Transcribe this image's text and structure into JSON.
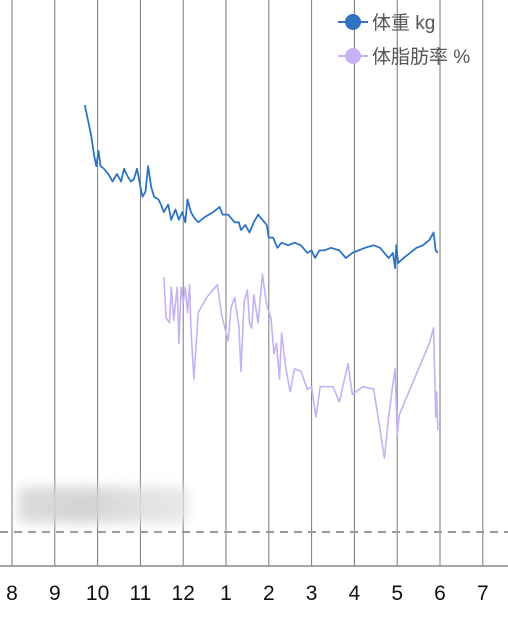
{
  "chart_data": {
    "type": "line",
    "x_tick_labels": [
      "8",
      "9",
      "10",
      "11",
      "12",
      "1",
      "2",
      "3",
      "4",
      "5",
      "6",
      "7"
    ],
    "grid": "vertical",
    "legend_position": "top-right",
    "series": [
      {
        "name": "体重 kg",
        "color": "#2e74c0",
        "points": [
          [
            9.7,
            81.0
          ],
          [
            9.85,
            79.8
          ],
          [
            9.92,
            79.0
          ],
          [
            9.97,
            78.6
          ],
          [
            10.02,
            79.2
          ],
          [
            10.07,
            78.6
          ],
          [
            10.15,
            78.5
          ],
          [
            10.25,
            78.3
          ],
          [
            10.35,
            78.0
          ],
          [
            10.45,
            78.3
          ],
          [
            10.55,
            78.0
          ],
          [
            10.62,
            78.5
          ],
          [
            10.7,
            78.2
          ],
          [
            10.78,
            78.0
          ],
          [
            10.85,
            78.1
          ],
          [
            10.92,
            78.5
          ],
          [
            11.0,
            77.8
          ],
          [
            11.05,
            77.4
          ],
          [
            11.12,
            77.6
          ],
          [
            11.18,
            78.6
          ],
          [
            11.25,
            77.8
          ],
          [
            11.32,
            77.4
          ],
          [
            11.42,
            77.3
          ],
          [
            11.48,
            77.1
          ],
          [
            11.55,
            76.8
          ],
          [
            11.65,
            77.1
          ],
          [
            11.72,
            76.5
          ],
          [
            11.82,
            76.9
          ],
          [
            11.9,
            76.5
          ],
          [
            11.98,
            76.8
          ],
          [
            12.05,
            76.4
          ],
          [
            12.1,
            77.3
          ],
          [
            12.18,
            76.8
          ],
          [
            12.25,
            76.6
          ],
          [
            12.35,
            76.4
          ],
          [
            12.5,
            76.6
          ],
          [
            12.7,
            76.8
          ],
          [
            12.85,
            77.0
          ],
          [
            12.92,
            76.7
          ],
          [
            13.05,
            76.7
          ],
          [
            13.2,
            76.4
          ],
          [
            13.3,
            76.4
          ],
          [
            13.35,
            76.1
          ],
          [
            13.45,
            76.3
          ],
          [
            13.55,
            76.0
          ],
          [
            13.65,
            76.4
          ],
          [
            13.75,
            76.7
          ],
          [
            13.85,
            76.5
          ],
          [
            13.95,
            76.3
          ],
          [
            14.0,
            75.8
          ],
          [
            14.1,
            75.8
          ],
          [
            14.2,
            75.4
          ],
          [
            14.3,
            75.6
          ],
          [
            14.45,
            75.5
          ],
          [
            14.6,
            75.6
          ],
          [
            14.75,
            75.5
          ],
          [
            14.9,
            75.2
          ],
          [
            15.0,
            75.3
          ],
          [
            15.08,
            75.0
          ],
          [
            15.18,
            75.3
          ],
          [
            15.3,
            75.3
          ],
          [
            15.45,
            75.4
          ],
          [
            15.65,
            75.3
          ],
          [
            15.8,
            75.0
          ],
          [
            15.95,
            75.2
          ],
          [
            16.1,
            75.3
          ],
          [
            16.25,
            75.4
          ],
          [
            16.45,
            75.5
          ],
          [
            16.6,
            75.4
          ],
          [
            16.7,
            75.2
          ],
          [
            16.8,
            75.0
          ],
          [
            16.9,
            75.2
          ],
          [
            16.95,
            74.6
          ],
          [
            16.98,
            75.5
          ],
          [
            17.02,
            74.8
          ],
          [
            17.15,
            75.0
          ],
          [
            17.3,
            75.2
          ],
          [
            17.45,
            75.4
          ],
          [
            17.6,
            75.5
          ],
          [
            17.75,
            75.7
          ],
          [
            17.85,
            76.0
          ],
          [
            17.9,
            75.3
          ],
          [
            17.95,
            75.2
          ]
        ]
      },
      {
        "name": "体脂肪率 %",
        "color": "#c4b2f2",
        "points": [
          [
            11.55,
            31.0
          ],
          [
            11.6,
            29.4
          ],
          [
            11.68,
            29.2
          ],
          [
            11.72,
            30.6
          ],
          [
            11.78,
            29.3
          ],
          [
            11.82,
            30.0
          ],
          [
            11.86,
            30.6
          ],
          [
            11.9,
            28.4
          ],
          [
            11.95,
            30.6
          ],
          [
            12.0,
            30.0
          ],
          [
            12.05,
            30.6
          ],
          [
            12.1,
            29.6
          ],
          [
            12.15,
            30.7
          ],
          [
            12.18,
            29.0
          ],
          [
            12.25,
            27.0
          ],
          [
            12.35,
            29.6
          ],
          [
            12.55,
            30.2
          ],
          [
            12.8,
            30.7
          ],
          [
            12.9,
            29.5
          ],
          [
            13.05,
            28.5
          ],
          [
            13.12,
            29.8
          ],
          [
            13.2,
            30.2
          ],
          [
            13.3,
            29.1
          ],
          [
            13.35,
            27.3
          ],
          [
            13.42,
            30.0
          ],
          [
            13.5,
            30.5
          ],
          [
            13.55,
            29.2
          ],
          [
            13.6,
            29.0
          ],
          [
            13.65,
            30.3
          ],
          [
            13.75,
            29.2
          ],
          [
            13.85,
            31.1
          ],
          [
            13.95,
            29.9
          ],
          [
            14.05,
            29.4
          ],
          [
            14.12,
            28.0
          ],
          [
            14.18,
            28.4
          ],
          [
            14.25,
            27.0
          ],
          [
            14.3,
            28.8
          ],
          [
            14.4,
            27.4
          ],
          [
            14.5,
            26.5
          ],
          [
            14.6,
            27.4
          ],
          [
            14.75,
            27.3
          ],
          [
            14.9,
            26.6
          ],
          [
            15.0,
            26.7
          ],
          [
            15.1,
            25.5
          ],
          [
            15.2,
            26.7
          ],
          [
            15.35,
            26.7
          ],
          [
            15.5,
            26.7
          ],
          [
            15.65,
            26.1
          ],
          [
            15.85,
            27.6
          ],
          [
            15.95,
            26.4
          ],
          [
            16.2,
            26.7
          ],
          [
            16.45,
            26.6
          ],
          [
            16.6,
            25.0
          ],
          [
            16.7,
            23.9
          ],
          [
            16.8,
            25.5
          ],
          [
            16.9,
            26.8
          ],
          [
            16.95,
            27.4
          ],
          [
            17.0,
            24.8
          ],
          [
            17.05,
            25.6
          ],
          [
            17.15,
            26.0
          ],
          [
            17.35,
            26.8
          ],
          [
            17.55,
            27.6
          ],
          [
            17.75,
            28.4
          ],
          [
            17.85,
            29.0
          ],
          [
            17.9,
            25.5
          ],
          [
            17.92,
            26.5
          ],
          [
            17.95,
            25.0
          ]
        ]
      }
    ]
  }
}
